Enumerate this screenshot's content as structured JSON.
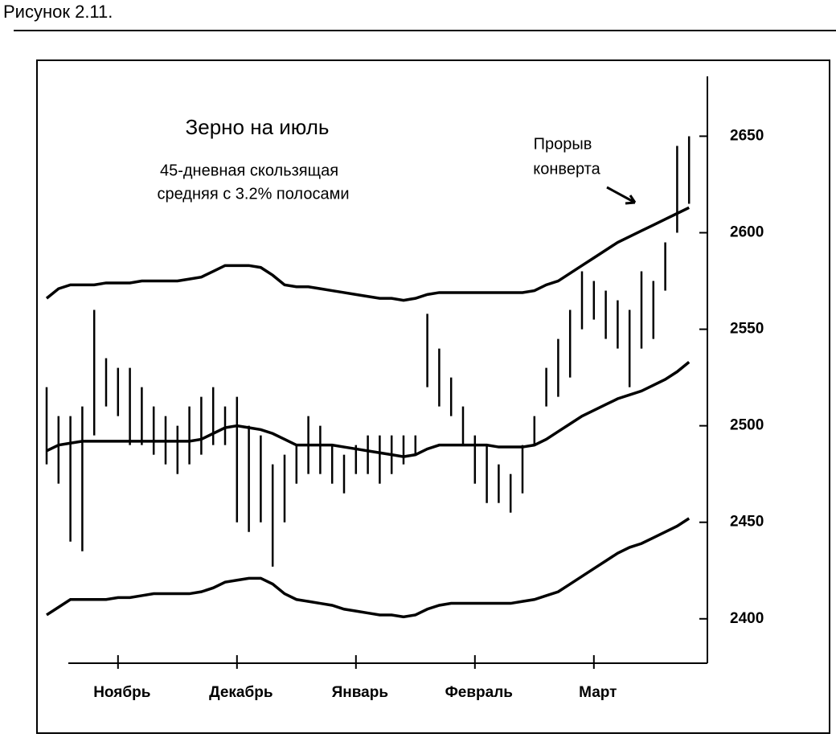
{
  "header": {
    "caption": "Рисунок 2.11."
  },
  "chart_data": {
    "type": "ohlc",
    "title": "Зерно на июль",
    "subtitle": [
      "45-дневная скользящая",
      "средняя с 3.2% полосами"
    ],
    "annotation": [
      "Прорыв",
      "конверта"
    ],
    "categories": [
      null,
      null,
      null,
      null,
      null,
      null,
      "Ноябрь",
      null,
      null,
      null,
      null,
      null,
      null,
      null,
      null,
      null,
      "Декабрь",
      null,
      null,
      null,
      null,
      null,
      null,
      null,
      null,
      null,
      "Январь",
      null,
      null,
      null,
      null,
      null,
      null,
      null,
      null,
      null,
      "Февраль",
      null,
      null,
      null,
      null,
      null,
      null,
      null,
      null,
      null,
      "Март",
      null,
      null,
      null,
      null,
      null,
      null,
      null,
      null
    ],
    "series": [
      {
        "color": "#000000",
        "values": [
          2566,
          2571,
          2573,
          2573,
          2573,
          2574,
          2574,
          2574,
          2575,
          2575,
          2575,
          2575,
          2576,
          2577,
          2580,
          2583,
          2583,
          2583,
          2582,
          2578,
          2573,
          2572,
          2572,
          2571,
          2570,
          2569,
          2568,
          2567,
          2566,
          2566,
          2565,
          2566,
          2568,
          2569,
          2569,
          2569,
          2569,
          2569,
          2569,
          2569,
          2569,
          2570,
          2573,
          2575,
          2579,
          2583,
          2587,
          2591,
          2595,
          2598,
          2601,
          2604,
          2607,
          2610,
          2613
        ]
      },
      {
        "color": "#000000",
        "values": [
          2487,
          2490,
          2491,
          2492,
          2492,
          2492,
          2492,
          2492,
          2492,
          2492,
          2492,
          2492,
          2492,
          2493,
          2496,
          2499,
          2500,
          2499,
          2498,
          2496,
          2493,
          2490,
          2490,
          2490,
          2490,
          2489,
          2488,
          2487,
          2486,
          2485,
          2484,
          2485,
          2488,
          2490,
          2490,
          2490,
          2490,
          2490,
          2489,
          2489,
          2489,
          2490,
          2493,
          2497,
          2501,
          2505,
          2508,
          2511,
          2514,
          2516,
          2518,
          2521,
          2524,
          2528,
          2533
        ]
      },
      {
        "color": "#000000",
        "values": [
          2402,
          2406,
          2410,
          2410,
          2410,
          2410,
          2411,
          2411,
          2412,
          2413,
          2413,
          2413,
          2413,
          2414,
          2416,
          2419,
          2420,
          2421,
          2421,
          2418,
          2413,
          2410,
          2409,
          2408,
          2407,
          2405,
          2404,
          2403,
          2402,
          2402,
          2401,
          2402,
          2405,
          2407,
          2408,
          2408,
          2408,
          2408,
          2408,
          2408,
          2409,
          2410,
          2412,
          2414,
          2418,
          2422,
          2426,
          2430,
          2434,
          2437,
          2439,
          2442,
          2445,
          2448,
          2452
        ]
      }
    ],
    "bars": {
      "color": "#000000",
      "high": [
        2520,
        2505,
        2505,
        2510,
        2560,
        2535,
        2530,
        2530,
        2520,
        2510,
        2505,
        2500,
        2510,
        2515,
        2520,
        2510,
        2515,
        2500,
        2495,
        2480,
        2485,
        2490,
        2505,
        2500,
        2490,
        2485,
        2490,
        2495,
        2495,
        2495,
        2495,
        2495,
        2558,
        2540,
        2525,
        2510,
        2495,
        2490,
        2480,
        2475,
        2490,
        2505,
        2530,
        2545,
        2560,
        2580,
        2575,
        2570,
        2565,
        2560,
        2580,
        2575,
        2595,
        2645,
        2650
      ],
      "low": [
        2480,
        2470,
        2440,
        2435,
        2495,
        2510,
        2505,
        2490,
        2490,
        2485,
        2480,
        2475,
        2480,
        2485,
        2490,
        2490,
        2450,
        2445,
        2450,
        2427,
        2450,
        2470,
        2475,
        2475,
        2470,
        2465,
        2475,
        2475,
        2470,
        2475,
        2480,
        2485,
        2520,
        2510,
        2505,
        2490,
        2470,
        2460,
        2460,
        2455,
        2465,
        2490,
        2510,
        2515,
        2525,
        2550,
        2555,
        2545,
        2540,
        2520,
        2540,
        2545,
        2570,
        2600,
        2615
      ]
    },
    "ylim": [
      2377,
      2681
    ],
    "yticks": [
      2400,
      2450,
      2500,
      2550,
      2600,
      2650
    ]
  }
}
